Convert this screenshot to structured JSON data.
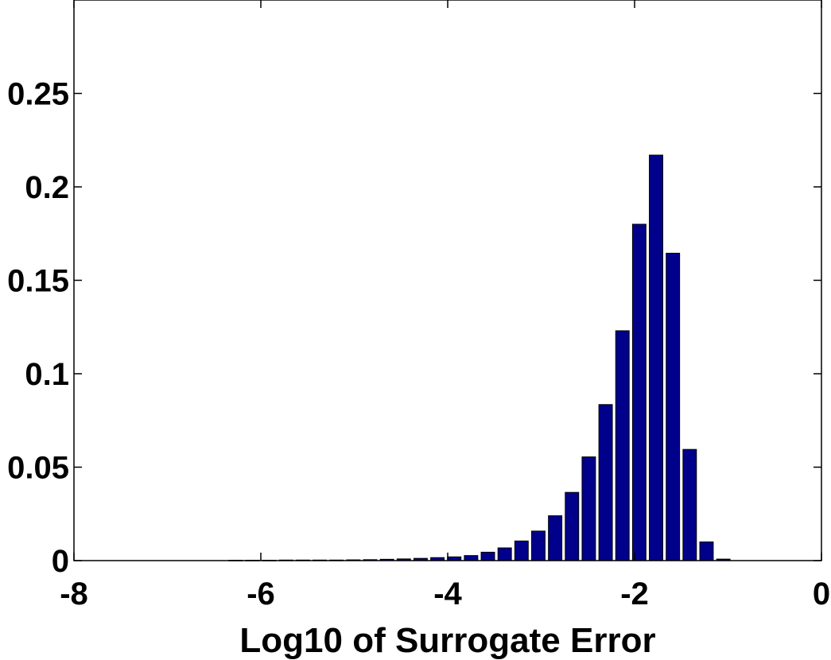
{
  "chart_data": {
    "type": "bar",
    "title": "",
    "xlabel": "Log10 of Surrogate Error",
    "ylabel": "",
    "xlim": [
      -8,
      0
    ],
    "ylim": [
      0,
      0.3
    ],
    "grid": false,
    "bar_color": "#00008b",
    "x_ticks": [
      -8,
      -6,
      -4,
      -2,
      0
    ],
    "x_tick_labels": [
      "-8",
      "-6",
      "-4",
      "-2",
      "0"
    ],
    "y_ticks": [
      0,
      0.05,
      0.1,
      0.15,
      0.2,
      0.25
    ],
    "y_tick_labels": [
      "0",
      "0.05",
      "0.1",
      "0.15",
      "0.2",
      "0.25"
    ],
    "bin_width": 0.18,
    "x": [
      -6.27,
      -6.09,
      -5.91,
      -5.73,
      -5.55,
      -5.37,
      -5.19,
      -5.01,
      -4.83,
      -4.65,
      -4.47,
      -4.29,
      -4.11,
      -3.93,
      -3.75,
      -3.57,
      -3.39,
      -3.21,
      -3.03,
      -2.85,
      -2.67,
      -2.49,
      -2.31,
      -2.13,
      -1.95,
      -1.77,
      -1.59,
      -1.41,
      -1.23,
      -1.05
    ],
    "values": [
      0.0002,
      0.0002,
      0.0002,
      0.0003,
      0.0003,
      0.0003,
      0.0003,
      0.0004,
      0.0005,
      0.0007,
      0.0009,
      0.0012,
      0.0016,
      0.002,
      0.0027,
      0.0045,
      0.0068,
      0.0105,
      0.0158,
      0.024,
      0.0365,
      0.0555,
      0.0835,
      0.123,
      0.18,
      0.217,
      0.1645,
      0.0595,
      0.01,
      0.0008
    ]
  }
}
